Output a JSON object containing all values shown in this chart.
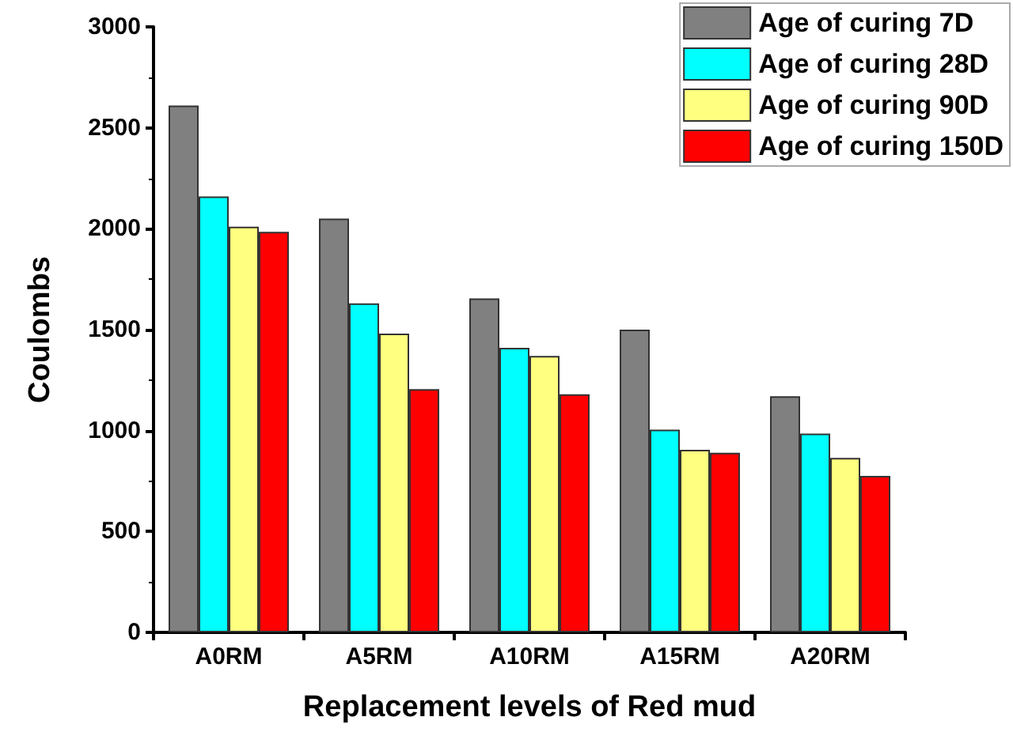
{
  "chart_data": {
    "type": "bar",
    "xlabel": "Replacement levels of Red mud",
    "ylabel": "Coulombs",
    "categories": [
      "A0RM",
      "A5RM",
      "A10RM",
      "A15RM",
      "A20RM"
    ],
    "series": [
      {
        "name": "Age of curing 7D",
        "color": "#808080",
        "values": [
          2610,
          2050,
          1655,
          1500,
          1170
        ]
      },
      {
        "name": "Age of curing 28D",
        "color": "#00ffff",
        "values": [
          2160,
          1630,
          1410,
          1005,
          985
        ]
      },
      {
        "name": "Age of curing 90D",
        "color": "#ffff80",
        "values": [
          2010,
          1480,
          1370,
          905,
          865
        ]
      },
      {
        "name": "Age of curing 150D",
        "color": "#ff0000",
        "values": [
          1985,
          1205,
          1180,
          890,
          775
        ]
      }
    ],
    "ylim": [
      0,
      3000
    ],
    "yticks": [
      0,
      500,
      1000,
      1500,
      2000,
      2500,
      3000
    ],
    "grid": false,
    "legend": "top right"
  }
}
